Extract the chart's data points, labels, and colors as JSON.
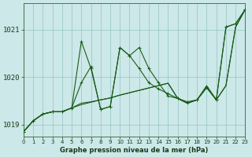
{
  "xlabel": "Graphe pression niveau de la mer (hPa)",
  "bg_color": "#cce8e8",
  "grid_color": "#88bbbb",
  "line_color": "#1a5c1a",
  "ylim": [
    1018.75,
    1021.55
  ],
  "xlim": [
    0,
    23
  ],
  "yticks": [
    1019,
    1020,
    1021
  ],
  "xticks": [
    0,
    1,
    2,
    3,
    4,
    5,
    6,
    7,
    8,
    9,
    10,
    11,
    12,
    13,
    14,
    15,
    16,
    17,
    18,
    19,
    20,
    21,
    22,
    23
  ],
  "series": [
    {
      "y": [
        1018.85,
        1019.08,
        1019.22,
        1019.27,
        1019.27,
        1019.35,
        1019.88,
        1020.22,
        1019.32,
        1019.38,
        1020.62,
        1020.45,
        1020.62,
        1020.18,
        1019.88,
        1019.6,
        1019.55,
        1019.45,
        1019.52,
        1019.78,
        1019.52,
        1021.05,
        1021.12,
        1021.42
      ],
      "marker": true
    },
    {
      "y": [
        1018.85,
        1019.08,
        1019.22,
        1019.27,
        1019.27,
        1019.35,
        1020.75,
        1020.18,
        1019.32,
        1019.38,
        1020.62,
        1020.45,
        1020.18,
        1019.88,
        1019.75,
        1019.65,
        1019.55,
        1019.48,
        1019.52,
        1019.78,
        1019.52,
        1021.05,
        1021.12,
        1021.42
      ],
      "marker": true
    },
    {
      "y": [
        1018.85,
        1019.08,
        1019.22,
        1019.27,
        1019.27,
        1019.35,
        1019.42,
        1019.47,
        1019.52,
        1019.56,
        1019.62,
        1019.67,
        1019.72,
        1019.77,
        1019.82,
        1019.87,
        1019.55,
        1019.45,
        1019.52,
        1019.78,
        1019.52,
        1019.82,
        1021.05,
        1021.42
      ],
      "marker": false
    },
    {
      "y": [
        1018.85,
        1019.08,
        1019.22,
        1019.27,
        1019.27,
        1019.35,
        1019.45,
        1019.48,
        1019.52,
        1019.56,
        1019.62,
        1019.67,
        1019.72,
        1019.77,
        1019.82,
        1019.87,
        1019.55,
        1019.45,
        1019.52,
        1019.82,
        1019.52,
        1019.82,
        1021.05,
        1021.42
      ],
      "marker": false
    }
  ]
}
